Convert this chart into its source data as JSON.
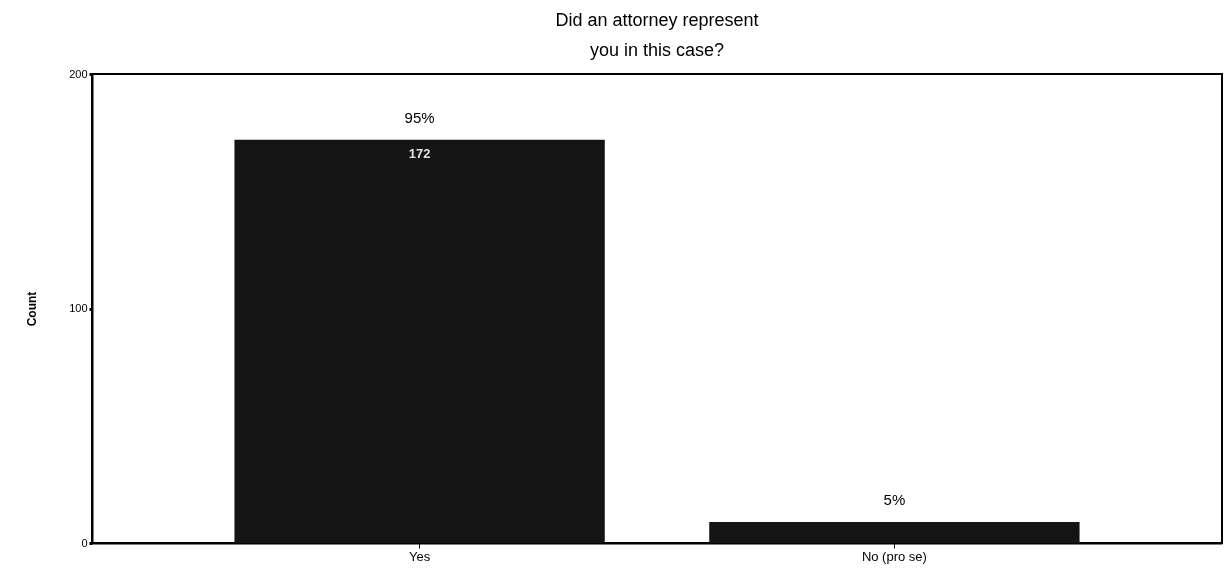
{
  "chart_data": {
    "type": "bar",
    "title": "Did an attorney represent you in this case?",
    "ylabel": "Count",
    "categories": [
      "Yes",
      "No (pro se)"
    ],
    "values": [
      172,
      9
    ],
    "color": "#141414",
    "value_labels": [
      "172",
      null
    ],
    "annotations": [
      {
        "text": "95%",
        "x": "Yes",
        "y": 172
      },
      {
        "text": "5%",
        "x": "No (pro se)",
        "y": 9
      }
    ],
    "ylim": [
      0,
      200
    ],
    "yticks": [
      0,
      100,
      200
    ],
    "grid": false
  }
}
